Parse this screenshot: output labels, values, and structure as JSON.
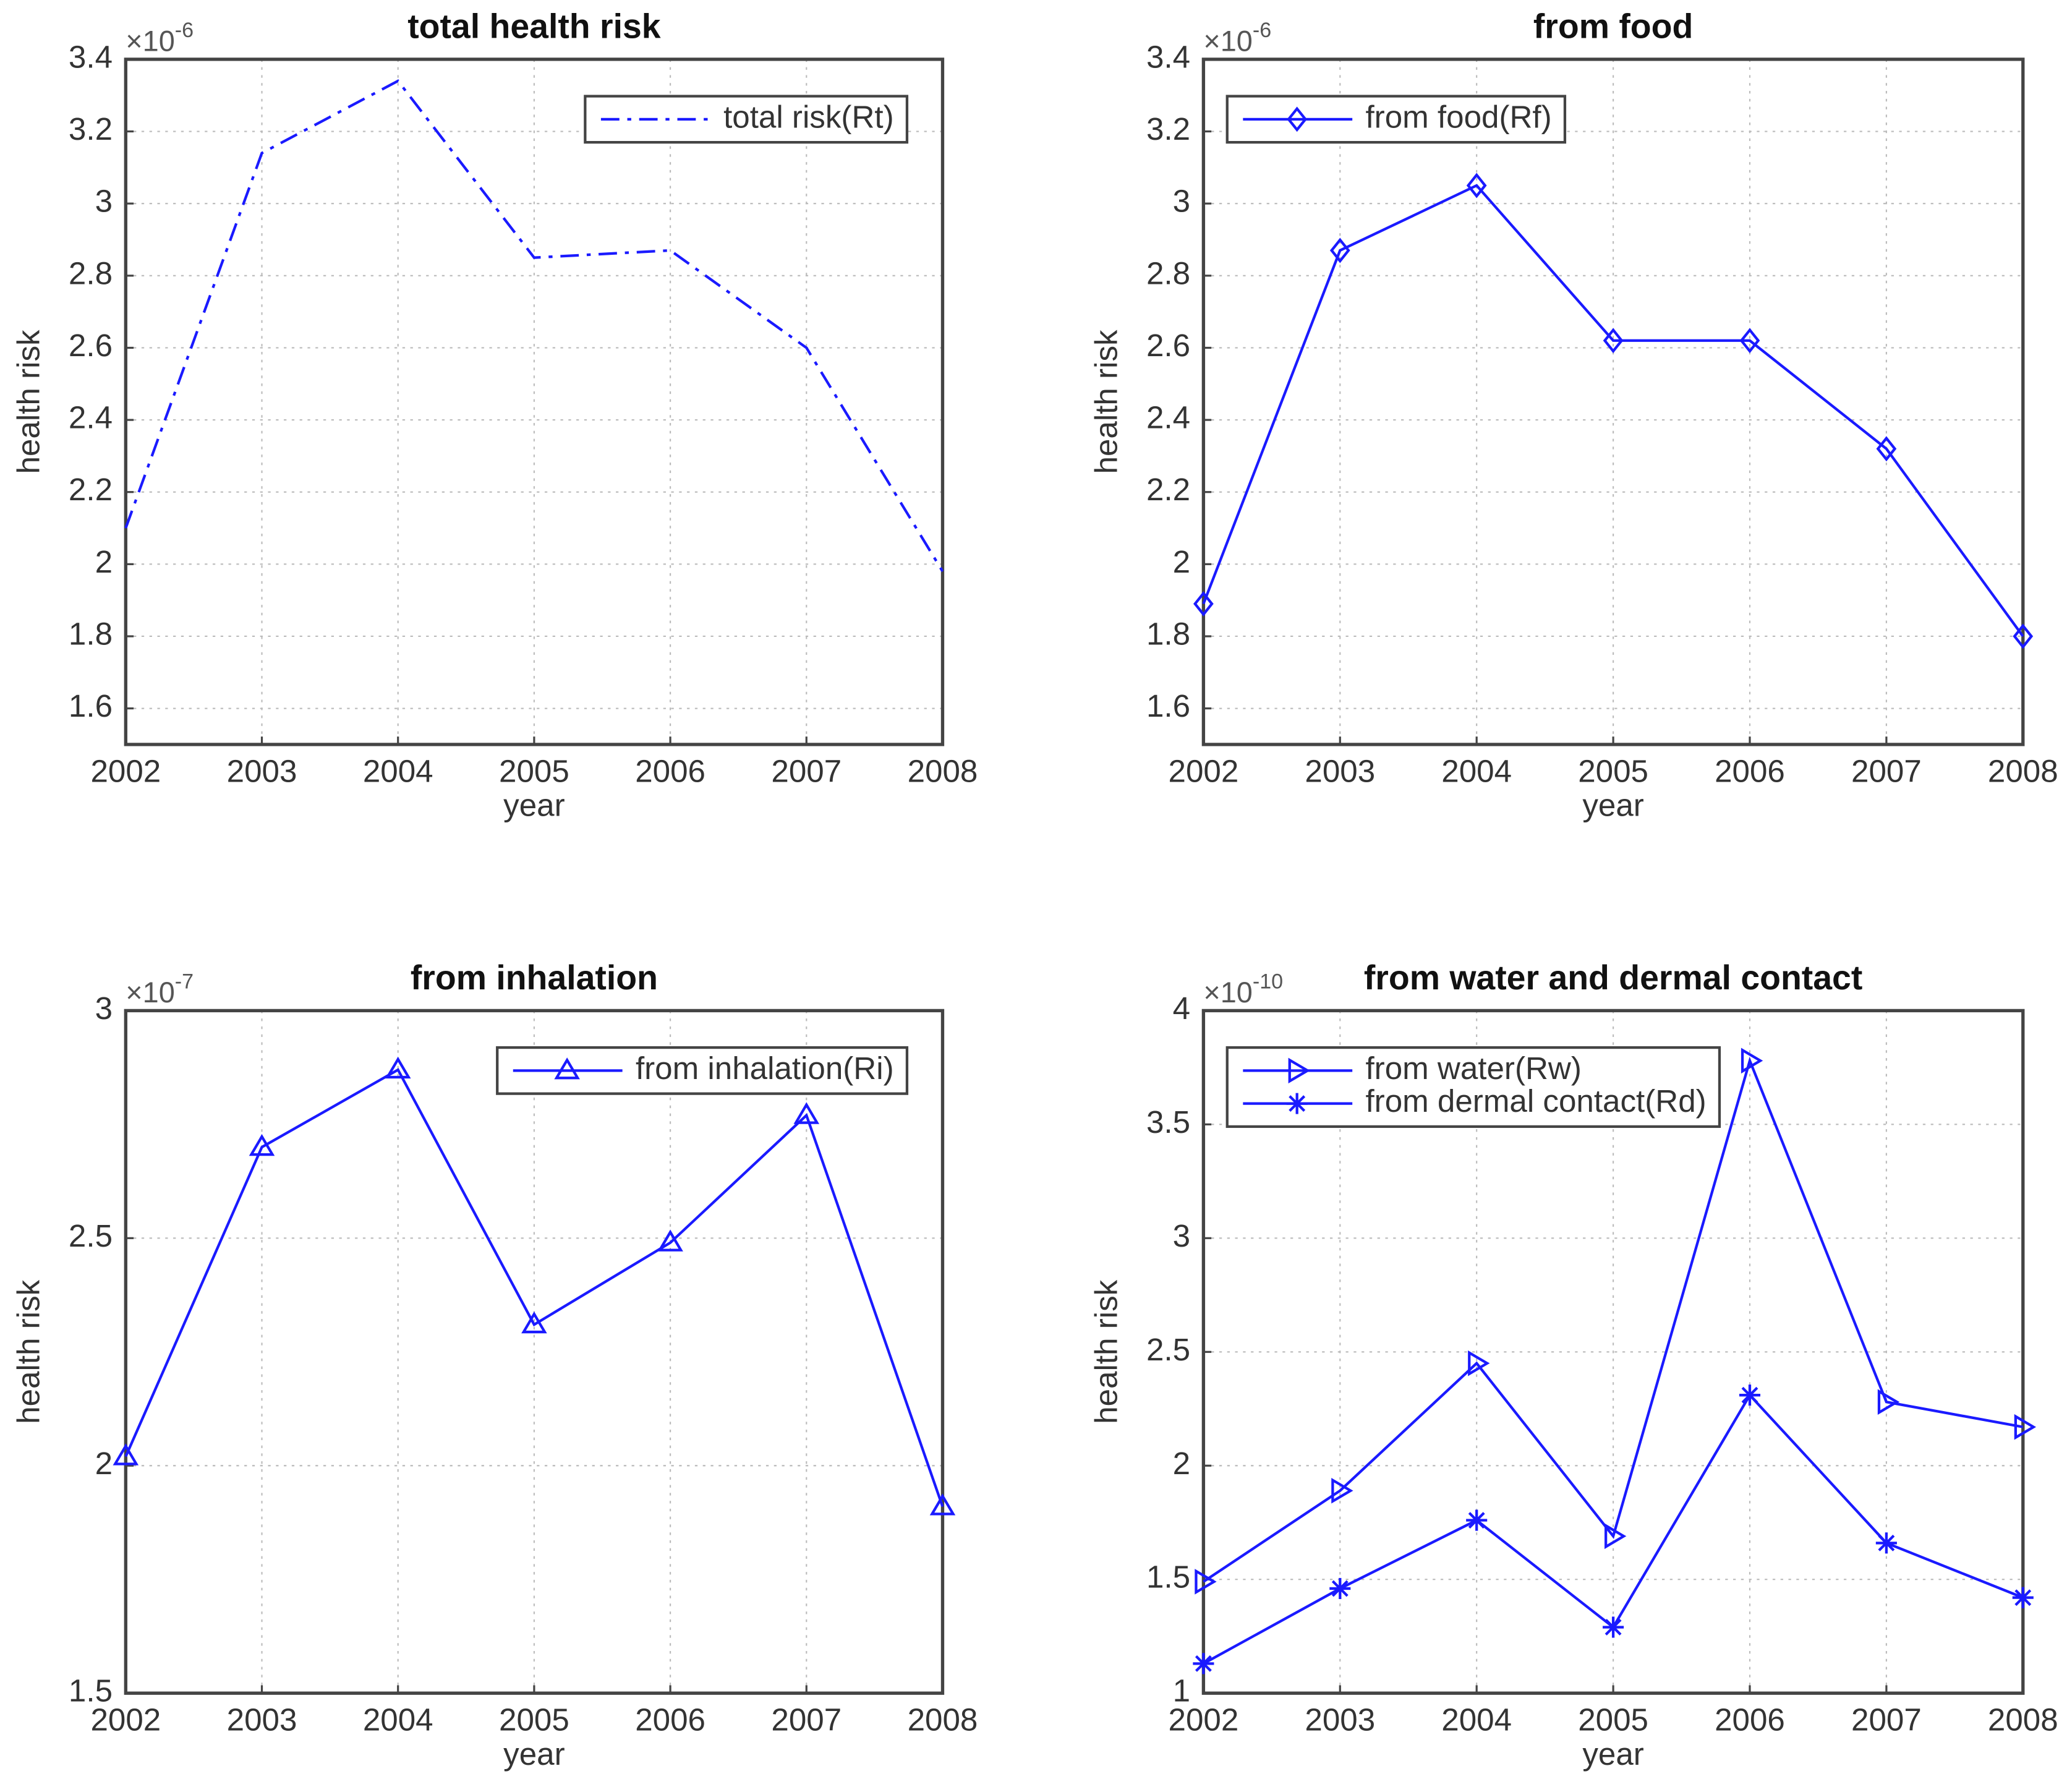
{
  "chart_data": [
    {
      "type": "line",
      "title": "total health risk",
      "xlabel": "year",
      "ylabel": "health risk",
      "y_multiplier": {
        "base": "×10",
        "exponent": "-6"
      },
      "x": [
        2002,
        2003,
        2004,
        2005,
        2006,
        2007,
        2008
      ],
      "xlim": [
        2002,
        2008
      ],
      "xticks": [
        2002,
        2003,
        2004,
        2005,
        2006,
        2007,
        2008
      ],
      "ylim": [
        1.5,
        3.4
      ],
      "yticks": [
        1.6,
        1.8,
        2,
        2.2,
        2.4,
        2.6,
        2.8,
        3,
        3.2,
        3.4
      ],
      "grid": true,
      "legend": "upper right",
      "series": [
        {
          "name": "total risk(Rt)",
          "color": "#1a1aff",
          "line_style": "dash-dot",
          "marker": "none",
          "values": [
            2.1,
            3.14,
            3.34,
            2.85,
            2.87,
            2.6,
            1.98
          ]
        }
      ]
    },
    {
      "type": "line",
      "title": "from food",
      "xlabel": "year",
      "ylabel": "health risk",
      "y_multiplier": {
        "base": "×10",
        "exponent": "-6"
      },
      "x": [
        2002,
        2003,
        2004,
        2005,
        2006,
        2007,
        2008
      ],
      "xlim": [
        2002,
        2008
      ],
      "xticks": [
        2002,
        2003,
        2004,
        2005,
        2006,
        2007,
        2008
      ],
      "ylim": [
        1.5,
        3.4
      ],
      "yticks": [
        1.6,
        1.8,
        2,
        2.2,
        2.4,
        2.6,
        2.8,
        3,
        3.2,
        3.4
      ],
      "grid": true,
      "legend": "upper left",
      "series": [
        {
          "name": "from food(Rf)",
          "color": "#1a1aff",
          "line_style": "solid",
          "marker": "diamond",
          "values": [
            1.89,
            2.87,
            3.05,
            2.62,
            2.62,
            2.32,
            1.8
          ]
        }
      ]
    },
    {
      "type": "line",
      "title": "from inhalation",
      "xlabel": "year",
      "ylabel": "health risk",
      "y_multiplier": {
        "base": "×10",
        "exponent": "-7"
      },
      "x": [
        2002,
        2003,
        2004,
        2005,
        2006,
        2007,
        2008
      ],
      "xlim": [
        2002,
        2008
      ],
      "xticks": [
        2002,
        2003,
        2004,
        2005,
        2006,
        2007,
        2008
      ],
      "ylim": [
        1.5,
        3
      ],
      "yticks": [
        1.5,
        2,
        2.5,
        3
      ],
      "grid": true,
      "legend": "upper right",
      "series": [
        {
          "name": "from inhalation(Ri)",
          "color": "#1a1aff",
          "line_style": "solid",
          "marker": "triangle-up",
          "values": [
            2.02,
            2.7,
            2.87,
            2.31,
            2.49,
            2.77,
            1.91
          ]
        }
      ]
    },
    {
      "type": "line",
      "title": "from water and dermal contact",
      "xlabel": "year",
      "ylabel": "health risk",
      "y_multiplier": {
        "base": "×10",
        "exponent": "-10"
      },
      "x": [
        2002,
        2003,
        2004,
        2005,
        2006,
        2007,
        2008
      ],
      "xlim": [
        2002,
        2008
      ],
      "xticks": [
        2002,
        2003,
        2004,
        2005,
        2006,
        2007,
        2008
      ],
      "ylim": [
        1,
        4
      ],
      "yticks": [
        1,
        1.5,
        2,
        2.5,
        3,
        3.5,
        4
      ],
      "grid": true,
      "legend": "upper left",
      "series": [
        {
          "name": "from water(Rw)",
          "color": "#1a1aff",
          "line_style": "solid",
          "marker": "triangle-right",
          "values": [
            1.49,
            1.89,
            2.45,
            1.69,
            3.78,
            2.28,
            2.17
          ]
        },
        {
          "name": "from dermal contact(Rd)",
          "color": "#1a1aff",
          "line_style": "solid",
          "marker": "asterisk",
          "values": [
            1.13,
            1.46,
            1.76,
            1.29,
            2.31,
            1.66,
            1.42
          ]
        }
      ]
    }
  ]
}
